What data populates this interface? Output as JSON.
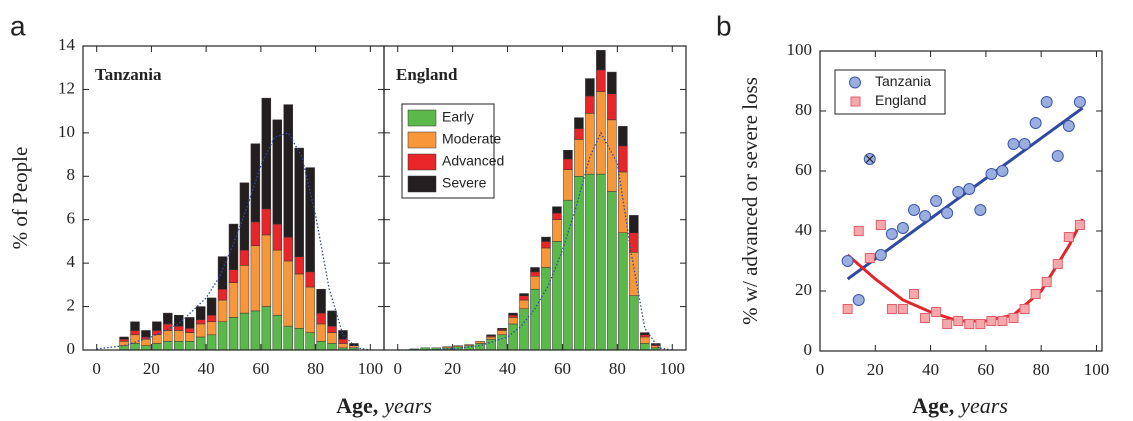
{
  "chart_data": [
    {
      "type": "histogram",
      "panel": "a",
      "title": "Tanzania",
      "ylabel": "% of People",
      "xlabel": "Age,",
      "xlabel_unit": "years",
      "xlim": [
        -5,
        105
      ],
      "xticks": [
        0,
        20,
        40,
        60,
        80,
        100
      ],
      "ylim": [
        0,
        14
      ],
      "yticks": [
        0,
        2,
        4,
        6,
        8,
        10,
        12,
        14
      ],
      "bins": [
        8,
        12,
        16,
        20,
        24,
        28,
        32,
        36,
        40,
        44,
        48,
        52,
        56,
        60,
        64,
        68,
        72,
        76,
        80,
        84,
        88,
        92,
        96
      ],
      "series": [
        {
          "name": "Early",
          "color": "#5ab94a",
          "values": [
            0.2,
            0.3,
            0.2,
            0.3,
            0.4,
            0.4,
            0.4,
            0.6,
            0.7,
            1.3,
            1.5,
            1.7,
            1.8,
            2.0,
            1.6,
            1.1,
            1.0,
            0.8,
            0.4,
            0.3,
            0.1,
            0.1
          ]
        },
        {
          "name": "Moderate",
          "color": "#f7973a",
          "values": [
            0.2,
            0.4,
            0.3,
            0.4,
            0.5,
            0.5,
            0.4,
            0.6,
            0.6,
            1.0,
            1.6,
            2.2,
            3.0,
            3.3,
            3.0,
            3.0,
            2.5,
            2.1,
            0.8,
            0.5,
            0.2,
            0.1
          ]
        },
        {
          "name": "Advanced",
          "color": "#e8262a",
          "values": [
            0.1,
            0.2,
            0.1,
            0.2,
            0.3,
            0.2,
            0.2,
            0.2,
            0.3,
            0.5,
            0.6,
            0.7,
            1.1,
            1.2,
            1.2,
            1.1,
            0.8,
            0.7,
            0.5,
            0.3,
            0.2,
            0
          ]
        },
        {
          "name": "Severe",
          "color": "#231f20",
          "values": [
            0.1,
            0.4,
            0.3,
            0.4,
            0.5,
            0.5,
            0.5,
            0.6,
            0.8,
            1.5,
            2.1,
            3.1,
            3.6,
            5.1,
            4.8,
            6.1,
            5.0,
            4.8,
            1.1,
            0.7,
            0.4,
            0.1
          ]
        }
      ],
      "fit": {
        "color": "#2f4aa0",
        "x": [
          0,
          10,
          20,
          30,
          40,
          45,
          50,
          55,
          60,
          65,
          70,
          75,
          80,
          85,
          90,
          95,
          100
        ],
        "values": [
          0.05,
          0.2,
          0.6,
          1.2,
          2.4,
          3.4,
          4.9,
          6.6,
          8.5,
          9.8,
          10,
          8.9,
          6.2,
          2.8,
          0.7,
          0.1,
          0
        ]
      }
    },
    {
      "type": "histogram",
      "title": "England",
      "legend": "upper left",
      "ytick_labels": false,
      "xlim": [
        -5,
        105
      ],
      "xticks": [
        0,
        20,
        40,
        60,
        80,
        100
      ],
      "ylim": [
        0,
        14
      ],
      "yticks": [
        0,
        2,
        4,
        6,
        8,
        10,
        12,
        14
      ],
      "bins": [
        4,
        8,
        12,
        16,
        20,
        24,
        28,
        32,
        36,
        40,
        44,
        48,
        52,
        56,
        60,
        64,
        68,
        72,
        76,
        80,
        84,
        88,
        92,
        96
      ],
      "series": [
        {
          "name": "Early",
          "color": "#5ab94a",
          "values": [
            0.05,
            0.1,
            0.1,
            0.1,
            0.15,
            0.2,
            0.3,
            0.5,
            0.7,
            1.2,
            1.9,
            2.8,
            3.8,
            5.0,
            6.9,
            8.0,
            8.1,
            8.1,
            7.3,
            5.4,
            2.5,
            0.3,
            0.1
          ]
        },
        {
          "name": "Moderate",
          "color": "#f7973a",
          "values": [
            0,
            0,
            0,
            0.05,
            0.05,
            0.05,
            0.1,
            0.1,
            0.2,
            0.3,
            0.4,
            0.6,
            0.9,
            1.0,
            1.4,
            1.7,
            2.8,
            3.8,
            3.3,
            2.8,
            2.0,
            0.3,
            0.1
          ]
        },
        {
          "name": "Advanced",
          "color": "#e8262a",
          "values": [
            0,
            0,
            0,
            0,
            0,
            0,
            0,
            0.05,
            0.05,
            0.1,
            0.2,
            0.2,
            0.3,
            0.3,
            0.5,
            0.5,
            0.8,
            1.0,
            1.2,
            1.2,
            0.9,
            0.1,
            0.05
          ]
        },
        {
          "name": "Severe",
          "color": "#231f20",
          "values": [
            0,
            0,
            0,
            0,
            0,
            0,
            0,
            0.05,
            0.05,
            0.1,
            0.1,
            0.2,
            0.2,
            0.3,
            0.4,
            0.5,
            0.8,
            0.9,
            1.0,
            0.9,
            0.8,
            0.1,
            0.05
          ]
        }
      ],
      "fit": {
        "color": "#2f4aa0",
        "x": [
          0,
          10,
          20,
          30,
          40,
          45,
          50,
          55,
          60,
          65,
          70,
          74,
          80,
          85,
          90,
          95,
          100
        ],
        "values": [
          0,
          0,
          0.05,
          0.2,
          0.6,
          1.1,
          1.9,
          3,
          4.6,
          6.6,
          8.9,
          10,
          8.6,
          4.5,
          1.0,
          0.1,
          0
        ]
      }
    },
    {
      "type": "scatter",
      "panel": "b",
      "legend": "upper left",
      "ylabel": "% w/ advanced or severe loss",
      "xlabel": "Age,",
      "xlabel_unit": "years",
      "xlim": [
        0,
        102
      ],
      "xticks": [
        0,
        20,
        40,
        60,
        80,
        100
      ],
      "ylim": [
        0,
        100
      ],
      "yticks": [
        0,
        20,
        40,
        60,
        80,
        100
      ],
      "series": [
        {
          "name": "Tanzania",
          "marker": "circle",
          "color": "#9aaee0",
          "edge_color": "#3d57a6",
          "excluded_points": [
            2
          ],
          "x": [
            10,
            14,
            18,
            22,
            26,
            30,
            34,
            38,
            42,
            46,
            50,
            54,
            58,
            62,
            66,
            70,
            74,
            78,
            82,
            86,
            90,
            94
          ],
          "values": [
            30,
            17,
            64,
            32,
            39,
            41,
            47,
            45,
            50,
            46,
            53,
            54,
            47,
            59,
            60,
            69,
            69,
            76,
            83,
            65,
            75,
            83
          ],
          "fit": {
            "color": "#2f4aa0",
            "x": [
              10,
              95
            ],
            "values": [
              24,
              81
            ]
          }
        },
        {
          "name": "England",
          "marker": "square",
          "color": "#f7a8ac",
          "edge_color": "#e0606a",
          "x": [
            10,
            14,
            18,
            22,
            26,
            30,
            34,
            38,
            42,
            46,
            50,
            54,
            58,
            62,
            66,
            70,
            74,
            78,
            82,
            86,
            90,
            94
          ],
          "values": [
            14,
            40,
            31,
            42,
            14,
            14,
            19,
            11,
            13,
            9,
            10,
            9,
            9,
            10,
            10,
            11,
            14,
            19,
            23,
            29,
            38,
            42
          ],
          "fit": {
            "color": "#e0262a",
            "x": [
              10,
              20,
              30,
              40,
              50,
              60,
              70,
              80,
              90,
              95
            ],
            "values": [
              32,
              24,
              17,
              13,
              10,
              10,
              12,
              20,
              35,
              44
            ]
          }
        }
      ]
    }
  ]
}
